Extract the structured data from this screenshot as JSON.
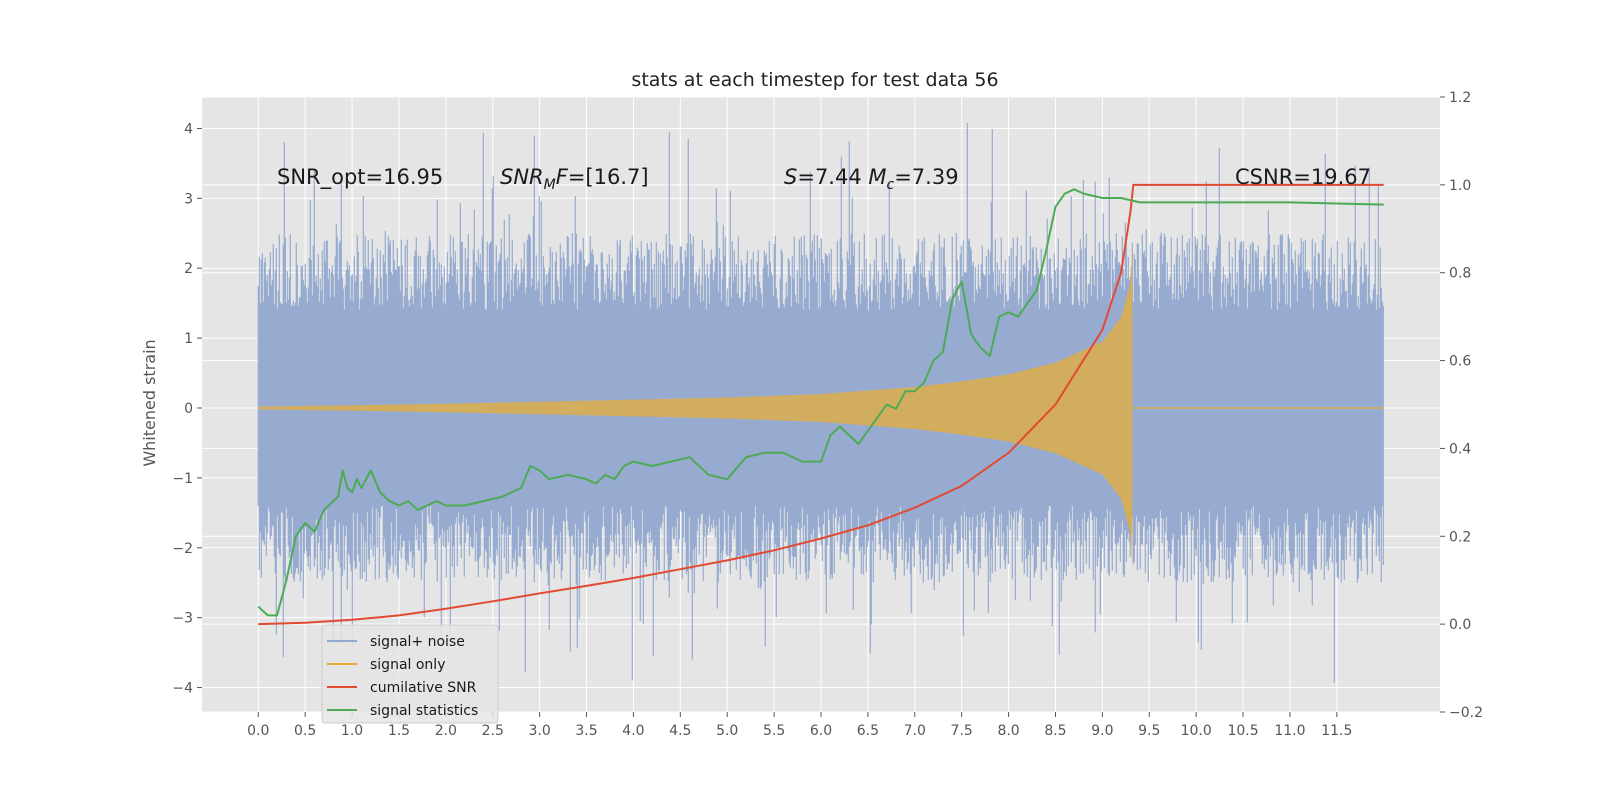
{
  "chart_data": {
    "type": "line",
    "title": "stats at each timestep for test data 56",
    "ylabel": "Whitened strain",
    "xlim": [
      -0.6,
      12.6
    ],
    "ylim": [
      -4.35,
      4.45
    ],
    "y2lim": [
      -0.2,
      1.2
    ],
    "xticks": [
      "0.0",
      "0.5",
      "1.0",
      "1.5",
      "2.0",
      "2.5",
      "3.0",
      "3.5",
      "4.0",
      "4.5",
      "5.0",
      "5.5",
      "6.0",
      "6.5",
      "7.0",
      "7.5",
      "8.0",
      "8.5",
      "9.0",
      "9.5",
      "10.0",
      "10.5",
      "11.0",
      "11.5"
    ],
    "yticks": [
      "4",
      "3",
      "2",
      "1",
      "0",
      "−1",
      "−2",
      "−3",
      "−4"
    ],
    "y2ticks": [
      "1.2",
      "1.0",
      "0.8",
      "0.6",
      "0.4",
      "0.2",
      "0.0",
      "−0.2"
    ],
    "grid": true,
    "legend_position": "lower-left",
    "annotations": {
      "snr_opt": "SNR_opt=16.95",
      "snr_mf": "SNR_MF=[16.7]",
      "s_mc": "S=7.44   M_c=7.39",
      "csnr": "CSNR=19.67"
    },
    "series": [
      {
        "name": "signal+ noise",
        "color": "#92a8cf",
        "axis": "left",
        "x_range": [
          0.0,
          12.0
        ],
        "envelope": "noise band approx ±2.0, spikes to ±4"
      },
      {
        "name": "signal only",
        "color": "#e5ae38",
        "axis": "left",
        "envelope": {
          "x": [
            0.0,
            1.0,
            2.0,
            3.0,
            4.0,
            5.0,
            6.0,
            7.0,
            7.5,
            8.0,
            8.5,
            9.0,
            9.2,
            9.3,
            9.32
          ],
          "amplitude": [
            0.02,
            0.04,
            0.06,
            0.09,
            0.12,
            0.15,
            0.2,
            0.3,
            0.38,
            0.48,
            0.65,
            0.95,
            1.3,
            1.8,
            2.3
          ]
        }
      },
      {
        "name": "cumilative SNR",
        "color": "#e24a33",
        "axis": "right",
        "x": [
          0.0,
          0.5,
          1.0,
          1.5,
          2.0,
          2.5,
          3.0,
          3.5,
          4.0,
          4.5,
          5.0,
          5.5,
          6.0,
          6.5,
          7.0,
          7.5,
          8.0,
          8.5,
          9.0,
          9.2,
          9.3,
          9.33,
          12.0
        ],
        "values": [
          0.0,
          0.003,
          0.01,
          0.02,
          0.035,
          0.052,
          0.07,
          0.087,
          0.105,
          0.125,
          0.145,
          0.168,
          0.195,
          0.225,
          0.265,
          0.315,
          0.39,
          0.5,
          0.67,
          0.8,
          0.94,
          1.0,
          1.0
        ]
      },
      {
        "name": "signal statistics",
        "color": "#348abd",
        "display_color": "#4daa55",
        "axis": "right",
        "x": [
          0.0,
          0.1,
          0.2,
          0.3,
          0.4,
          0.5,
          0.55,
          0.6,
          0.7,
          0.8,
          0.85,
          0.9,
          0.95,
          1.0,
          1.05,
          1.1,
          1.2,
          1.3,
          1.4,
          1.5,
          1.6,
          1.7,
          1.8,
          1.9,
          2.0,
          2.2,
          2.4,
          2.6,
          2.8,
          2.9,
          3.0,
          3.1,
          3.3,
          3.5,
          3.6,
          3.7,
          3.8,
          3.9,
          4.0,
          4.2,
          4.4,
          4.6,
          4.8,
          5.0,
          5.2,
          5.4,
          5.6,
          5.8,
          6.0,
          6.1,
          6.2,
          6.4,
          6.6,
          6.7,
          6.8,
          6.9,
          7.0,
          7.1,
          7.2,
          7.3,
          7.4,
          7.5,
          7.6,
          7.7,
          7.8,
          7.9,
          8.0,
          8.1,
          8.2,
          8.3,
          8.4,
          8.5,
          8.6,
          8.7,
          8.8,
          9.0,
          9.2,
          9.4,
          10.0,
          11.0,
          12.0
        ],
        "values": [
          0.04,
          0.02,
          0.02,
          0.1,
          0.2,
          0.23,
          0.22,
          0.21,
          0.26,
          0.28,
          0.29,
          0.35,
          0.31,
          0.3,
          0.33,
          0.31,
          0.35,
          0.3,
          0.28,
          0.27,
          0.28,
          0.26,
          0.27,
          0.28,
          0.27,
          0.27,
          0.28,
          0.29,
          0.31,
          0.36,
          0.35,
          0.33,
          0.34,
          0.33,
          0.32,
          0.34,
          0.33,
          0.36,
          0.37,
          0.36,
          0.37,
          0.38,
          0.34,
          0.33,
          0.38,
          0.39,
          0.39,
          0.37,
          0.37,
          0.43,
          0.45,
          0.41,
          0.47,
          0.5,
          0.49,
          0.53,
          0.53,
          0.55,
          0.6,
          0.62,
          0.74,
          0.78,
          0.66,
          0.63,
          0.61,
          0.7,
          0.71,
          0.7,
          0.73,
          0.76,
          0.85,
          0.95,
          0.98,
          0.99,
          0.98,
          0.97,
          0.97,
          0.96,
          0.96,
          0.96,
          0.955
        ]
      }
    ]
  }
}
